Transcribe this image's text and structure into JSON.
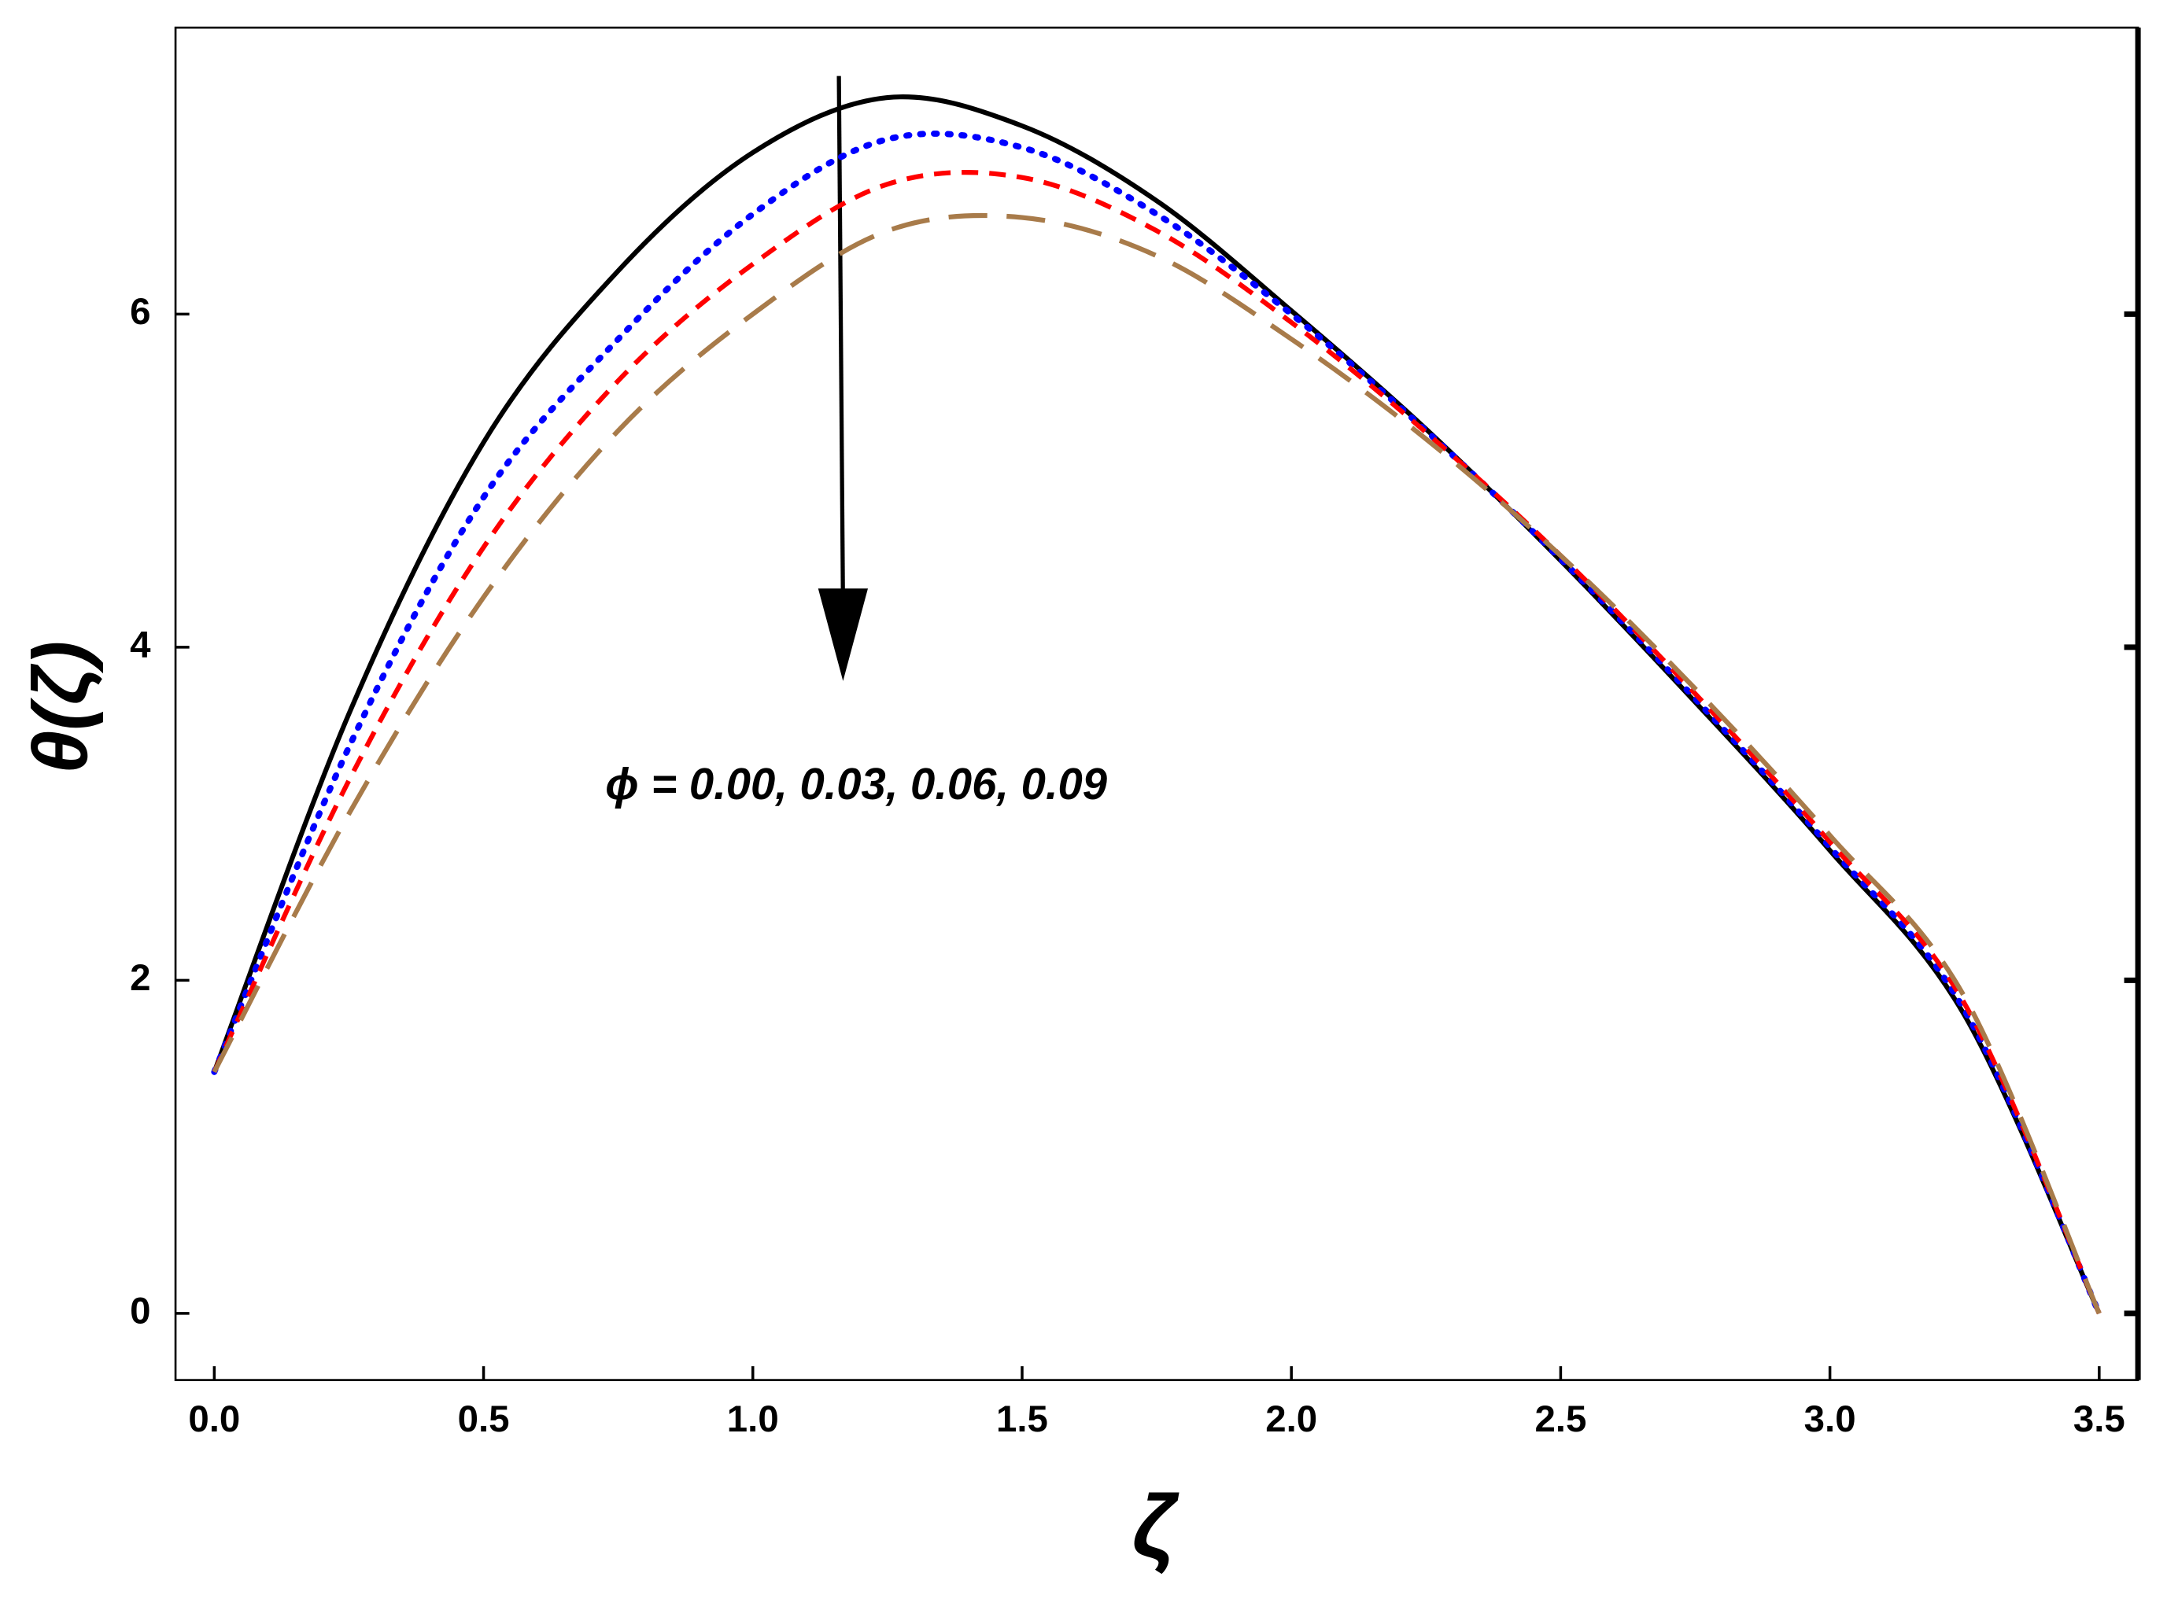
{
  "chart_data": {
    "type": "line",
    "x_label": "ζ",
    "y_label": "θ(ζ)",
    "annotation": "ϕ = 0.00, 0.03, 0.06, 0.09",
    "x": [
      0,
      0.25,
      0.5,
      0.75,
      1.0,
      1.25,
      1.5,
      1.75,
      2.0,
      2.25,
      2.5,
      2.75,
      3.0,
      3.25,
      3.5
    ],
    "series": [
      {
        "color": "#000000",
        "values": [
          1.45,
          3.6,
          5.23,
          6.26,
          6.97,
          7.3,
          7.13,
          6.68,
          6.02,
          5.31,
          4.52,
          3.67,
          2.78,
          1.79,
          0
        ]
      },
      {
        "color": "#0000ff",
        "values": [
          1.45,
          3.4,
          4.9,
          5.85,
          6.6,
          7.05,
          7.0,
          6.6,
          6.0,
          5.3,
          4.53,
          3.69,
          2.8,
          1.82,
          0
        ]
      },
      {
        "color": "#ff0000",
        "values": [
          1.45,
          3.2,
          4.6,
          5.6,
          6.3,
          6.78,
          6.82,
          6.5,
          5.95,
          5.29,
          4.55,
          3.72,
          2.83,
          1.86,
          0
        ]
      },
      {
        "color": "#a87b4a",
        "values": [
          1.45,
          3.0,
          4.3,
          5.3,
          6.0,
          6.5,
          6.58,
          6.35,
          5.85,
          5.25,
          4.55,
          3.75,
          2.87,
          1.9,
          0
        ]
      }
    ],
    "xlim": [
      -0.072,
      3.572
    ],
    "ylim": [
      -0.4,
      7.72
    ],
    "xticks": [
      {
        "value": 0,
        "label": "0.0"
      },
      0.5,
      {
        "value": 1,
        "label": "1.0"
      },
      1.5,
      {
        "value": 2,
        "label": "2.0"
      },
      2.5,
      {
        "value": 3,
        "label": "3.0"
      },
      3.5
    ],
    "yticks": [
      0,
      2,
      4,
      6
    ]
  }
}
